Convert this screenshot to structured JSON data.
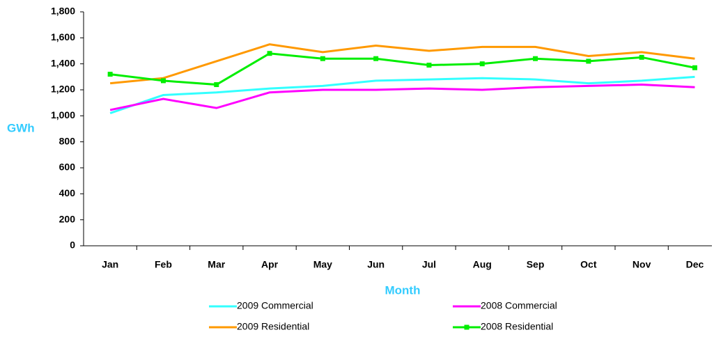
{
  "chart_data": {
    "type": "line",
    "x_label": "Month",
    "y_label": "GWh",
    "categories": [
      "Jan",
      "Feb",
      "Mar",
      "Apr",
      "May",
      "Jun",
      "Jul",
      "Aug",
      "Sep",
      "Oct",
      "Nov",
      "Dec"
    ],
    "ylim": [
      0,
      1800
    ],
    "yticks": [
      0,
      200,
      400,
      600,
      800,
      {
        "value": 1000,
        "label": "1,000"
      },
      {
        "value": 1200,
        "label": "1,200"
      },
      {
        "value": 1400,
        "label": "1,400"
      },
      {
        "value": 1600,
        "label": "1,600"
      },
      {
        "value": 1800,
        "label": "1,800"
      }
    ],
    "series": [
      {
        "name": "2009 Commercial",
        "color": "#33ffff",
        "values": [
          1020,
          1160,
          1180,
          1210,
          1230,
          1270,
          1280,
          1290,
          1280,
          1250,
          1270,
          1300
        ]
      },
      {
        "name": "2008 Commercial",
        "color": "#ff00ff",
        "values": [
          1045,
          1130,
          1060,
          1180,
          1200,
          1200,
          1210,
          1200,
          1220,
          1230,
          1240,
          1220
        ]
      },
      {
        "name": "2009 Residential",
        "color": "#ff9900",
        "values": [
          1250,
          1290,
          1420,
          1550,
          1490,
          1540,
          1500,
          1530,
          1530,
          1460,
          1490,
          1440
        ]
      },
      {
        "name": "2008 Residential",
        "color": "#00ee00",
        "marker": "square",
        "values": [
          1320,
          1270,
          1240,
          1480,
          1440,
          1440,
          1390,
          1400,
          1440,
          1420,
          1450,
          1370
        ]
      }
    ]
  }
}
